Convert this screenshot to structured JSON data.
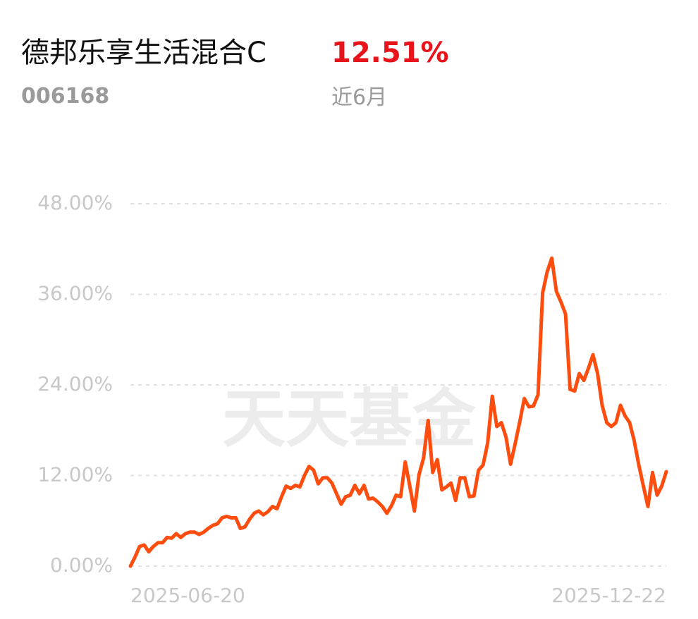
{
  "chart_data": {
    "type": "line",
    "title": "德邦乐享生活混合C",
    "return_label": "12.51%",
    "fund_code": "006168",
    "period": "近6月",
    "watermark": "天天基金",
    "categories": [
      "2025-06-20",
      null,
      null,
      null,
      null,
      null,
      null,
      null,
      null,
      null,
      null,
      null,
      null,
      null,
      null,
      null,
      null,
      null,
      null,
      null,
      null,
      null,
      null,
      null,
      null,
      null,
      null,
      null,
      null,
      null,
      null,
      null,
      null,
      null,
      null,
      null,
      null,
      null,
      null,
      null,
      null,
      null,
      null,
      null,
      null,
      null,
      null,
      null,
      null,
      null,
      null,
      null,
      null,
      null,
      null,
      null,
      null,
      null,
      null,
      null,
      null,
      null,
      null,
      null,
      null,
      null,
      null,
      null,
      null,
      null,
      null,
      null,
      null,
      null,
      null,
      null,
      null,
      null,
      null,
      null,
      null,
      null,
      null,
      null,
      null,
      null,
      null,
      null,
      null,
      null,
      null,
      null,
      null,
      null,
      null,
      null,
      null,
      null,
      null,
      null,
      null,
      null,
      null,
      null,
      null,
      null,
      null,
      null,
      null,
      null,
      null,
      null,
      null,
      null,
      null,
      null,
      null,
      "2025-12-22"
    ],
    "series": [
      {
        "name": "德邦乐享生活混合C",
        "color": "#ff4d0f",
        "values": [
          0,
          1.2,
          2.6,
          2.8,
          1.9,
          2.6,
          3.1,
          3.1,
          3.8,
          3.7,
          4.3,
          3.8,
          4.3,
          4.5,
          4.5,
          4.2,
          4.5,
          5.0,
          5.4,
          5.6,
          6.4,
          6.6,
          6.4,
          6.4,
          5.0,
          5.2,
          6.2,
          7.0,
          7.3,
          6.8,
          7.2,
          7.9,
          7.6,
          9.2,
          10.6,
          10.3,
          10.7,
          10.5,
          12.0,
          13.2,
          12.7,
          10.9,
          11.7,
          11.7,
          11.0,
          9.6,
          8.2,
          9.2,
          9.4,
          10.7,
          9.6,
          10.7,
          8.9,
          9.0,
          8.5,
          7.9,
          7.0,
          8.0,
          9.4,
          9.2,
          13.8,
          10.6,
          7.3,
          12.1,
          14.3,
          19.3,
          12.4,
          14.1,
          10.1,
          10.5,
          11.0,
          8.7,
          11.7,
          11.7,
          9.2,
          9.3,
          12.7,
          13.4,
          16.3,
          22.5,
          18.5,
          19.0,
          17.1,
          13.5,
          16.2,
          19.1,
          22.2,
          21.1,
          21.2,
          22.7,
          36.2,
          39.0,
          40.8,
          36.4,
          35.0,
          33.4,
          23.4,
          23.2,
          25.5,
          24.6,
          26.2,
          28.0,
          25.5,
          21.3,
          19.0,
          18.5,
          19.0,
          21.3,
          19.9,
          19.0,
          16.6,
          13.4,
          10.6,
          7.9,
          12.4,
          9.4,
          10.6,
          12.51
        ]
      }
    ],
    "ylim": [
      0,
      48
    ],
    "yticks": [
      {
        "value": 0,
        "label": "0.00%"
      },
      {
        "value": 12,
        "label": "12.00%"
      },
      {
        "value": 24,
        "label": "24.00%"
      },
      {
        "value": 36,
        "label": "36.00%"
      },
      {
        "value": 48,
        "label": "48.00%"
      }
    ],
    "grid": true
  }
}
